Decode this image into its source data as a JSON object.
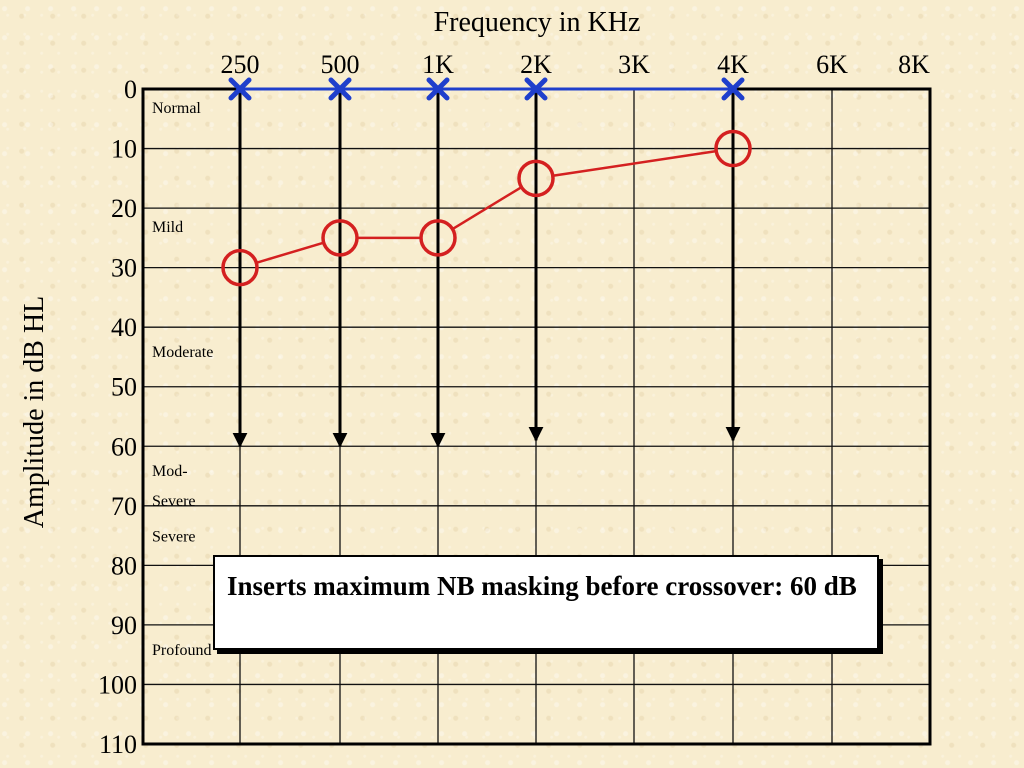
{
  "chart_data": {
    "type": "line",
    "title": "Frequency in KHz",
    "ylabel": "Amplitude in dB HL",
    "x_categories": [
      "250",
      "500",
      "1K",
      "2K",
      "3K",
      "4K",
      "6K",
      "8K"
    ],
    "y_ticks": [
      "0",
      "10",
      "20",
      "30",
      "40",
      "50",
      "60",
      "70",
      "80",
      "90",
      "100",
      "110"
    ],
    "ylim": [
      0,
      110
    ],
    "y_axis_inverted": true,
    "grid": true,
    "hearing_levels": [
      {
        "label": "Normal",
        "db": 1
      },
      {
        "label": "Mild",
        "db": 21
      },
      {
        "label": "Moderate",
        "db": 42
      },
      {
        "label": "Mod-",
        "db": 62
      },
      {
        "label": "Severe",
        "db": 67
      },
      {
        "label": "Severe",
        "db": 73
      },
      {
        "label": "Profound",
        "db": 92
      }
    ],
    "series": [
      {
        "marker": "x",
        "color": "#1f3fcc",
        "points": [
          {
            "x": "250",
            "y": 0
          },
          {
            "x": "500",
            "y": 0
          },
          {
            "x": "1K",
            "y": 0
          },
          {
            "x": "2K",
            "y": 0
          },
          {
            "x": "4K",
            "y": 0
          }
        ]
      },
      {
        "marker": "circle",
        "color": "#d42020",
        "points": [
          {
            "x": "250",
            "y": 30
          },
          {
            "x": "500",
            "y": 25
          },
          {
            "x": "1K",
            "y": 25
          },
          {
            "x": "2K",
            "y": 15
          },
          {
            "x": "4K",
            "y": 10
          }
        ]
      }
    ],
    "arrows": [
      {
        "x": "250",
        "from_db": 0,
        "to_db": 60
      },
      {
        "x": "500",
        "from_db": 0,
        "to_db": 60
      },
      {
        "x": "1K",
        "from_db": 0,
        "to_db": 60
      },
      {
        "x": "2K",
        "from_db": 0,
        "to_db": 59
      },
      {
        "x": "4K",
        "from_db": 0,
        "to_db": 59
      }
    ]
  },
  "callout": {
    "text": "Inserts maximum NB masking before crossover: 60 dB"
  }
}
